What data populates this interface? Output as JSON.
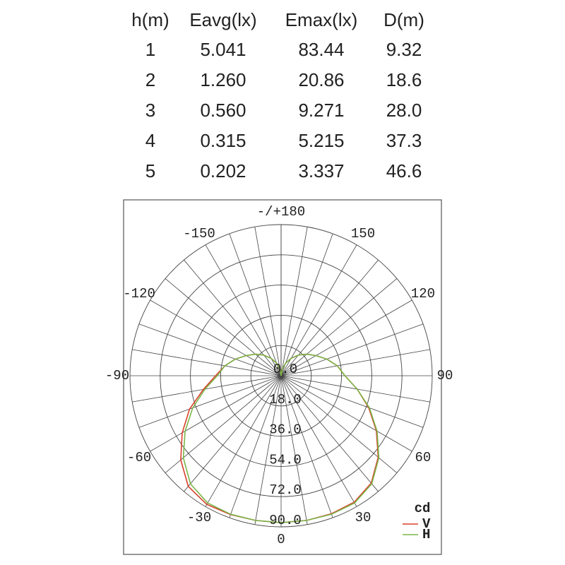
{
  "table": {
    "header": [
      "h(m)",
      "Eavg(lx)",
      "Emax(lx)",
      "D(m)"
    ],
    "rows": [
      [
        "1",
        "5.041",
        "83.44",
        "9.32"
      ],
      [
        "2",
        "1.260",
        "20.86",
        "18.6"
      ],
      [
        "3",
        "0.560",
        "9.271",
        "28.0"
      ],
      [
        "4",
        "0.315",
        "5.215",
        "37.3"
      ],
      [
        "5",
        "0.202",
        "3.337",
        "46.6"
      ]
    ]
  },
  "chart_data": {
    "type": "polar",
    "x": [
      -180,
      -170,
      -160,
      -150,
      -140,
      -130,
      -120,
      -110,
      -100,
      -90,
      -80,
      -70,
      -60,
      -50,
      -40,
      -30,
      -20,
      -10,
      0,
      10,
      20,
      30,
      40,
      50,
      60,
      70,
      80,
      90,
      100,
      110,
      120,
      130,
      140,
      150,
      160,
      170,
      180
    ],
    "series": [
      {
        "name": "V",
        "color": "#d9402b",
        "values": [
          0,
          4,
          8,
          12,
          16,
          20,
          24,
          29,
          34,
          39,
          47,
          58,
          68,
          78,
          86,
          88.5,
          88,
          87.5,
          87.5,
          87.5,
          87.5,
          87,
          83.5,
          75.5,
          65.5,
          55.5,
          46,
          38,
          34,
          29,
          24,
          20,
          16,
          12,
          8,
          4,
          0
        ]
      },
      {
        "name": "H",
        "color": "#7ab648",
        "values": [
          0,
          4,
          8,
          12,
          16,
          20,
          24,
          29,
          34,
          38,
          46,
          56,
          66,
          76,
          84,
          87.5,
          87.8,
          87.5,
          87.5,
          87.5,
          87.8,
          87.5,
          84,
          76,
          66,
          56,
          46,
          38,
          34,
          29,
          24,
          20,
          16,
          12,
          8,
          4,
          0
        ]
      }
    ],
    "rlim": [
      0,
      90
    ],
    "rticks": [
      {
        "value": 0,
        "label": "0.0"
      },
      {
        "value": 18,
        "label": "18.0"
      },
      {
        "value": 36,
        "label": "36.0"
      },
      {
        "value": 54,
        "label": "54.0"
      },
      {
        "value": 72,
        "label": "72.0"
      },
      {
        "value": 90,
        "label": "90.0"
      }
    ],
    "thetaticks": [
      {
        "value": 180,
        "label": "-/+180"
      },
      -150,
      150,
      -120,
      120,
      -90,
      90,
      -60,
      60,
      -30,
      30,
      0
    ],
    "legend_title": "cd",
    "legend": "lower right",
    "grid": true
  }
}
